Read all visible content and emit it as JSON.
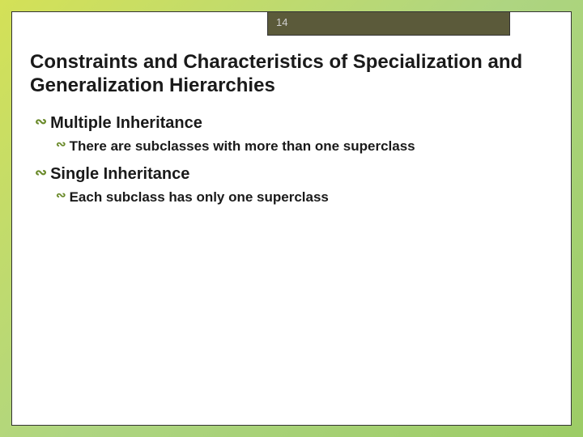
{
  "slide": {
    "number": "14",
    "title": "Constraints and Characteristics of Specialization and Generalization Hierarchies",
    "bullets": [
      {
        "text": "Multiple Inheritance",
        "children": [
          {
            "text": "There are subclasses with more than one superclass"
          }
        ]
      },
      {
        "text": "Single Inheritance",
        "children": [
          {
            "text": "Each subclass has only one superclass"
          }
        ]
      }
    ]
  },
  "style": {
    "background_gradient": [
      "#d4e157",
      "#aed581",
      "#9ccc65"
    ],
    "slide_background": "#ffffff",
    "slide_border": "#333333",
    "tab_background": "#5b5a3a",
    "tab_text_color": "#d0d0d0",
    "title_color": "#1a1a1a",
    "title_fontsize": 24,
    "bullet_icon_color": "#6a8a2a",
    "bullet_l1_fontsize": 20,
    "bullet_l2_fontsize": 17,
    "text_color": "#1a1a1a",
    "bullet_glyph": "∾"
  }
}
